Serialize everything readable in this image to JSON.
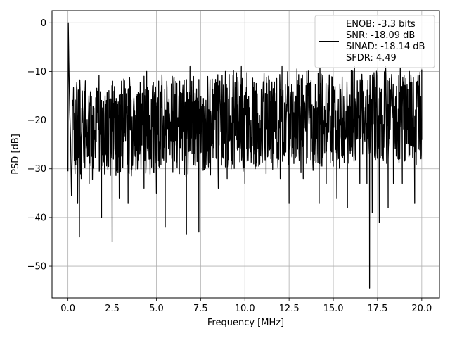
{
  "chart_data": {
    "type": "line",
    "title": "",
    "xlabel": "Frequency [MHz]",
    "ylabel": "PSD [dB]",
    "xlim": [
      -0.9,
      21.0
    ],
    "ylim": [
      -56.5,
      2.5
    ],
    "xticks": [
      0.0,
      2.5,
      5.0,
      7.5,
      10.0,
      12.5,
      15.0,
      17.5,
      20.0
    ],
    "xtick_labels": [
      "0.0",
      "2.5",
      "5.0",
      "7.5",
      "10.0",
      "12.5",
      "15.0",
      "17.5",
      "20.0"
    ],
    "yticks": [
      0,
      -10,
      -20,
      -30,
      -40,
      -50
    ],
    "ytick_labels": [
      "0",
      "−10",
      "−20",
      "−30",
      "−40",
      "−50"
    ],
    "grid": true,
    "line_color": "#000000",
    "legend_position": "top-right",
    "legend_lines": [
      "ENOB: -3.3 bits",
      "SNR: -18.09 dB",
      "SINAD: -18.14 dB",
      "SFDR: 4.49"
    ],
    "series": [
      {
        "points": [
          [
            0.0,
            -30.5
          ],
          [
            0.02,
            0.0
          ],
          [
            0.05,
            -8.0
          ],
          [
            0.1,
            -18.0
          ],
          [
            0.15,
            -24.0
          ],
          [
            0.2,
            -35.5
          ],
          [
            0.3,
            -16.0
          ],
          [
            0.4,
            -31.0
          ],
          [
            0.55,
            -37.0
          ],
          [
            0.65,
            -44.0
          ],
          [
            0.75,
            -32.0
          ],
          [
            0.95,
            -16.0
          ],
          [
            1.2,
            -33.0
          ],
          [
            1.3,
            -14.0
          ],
          [
            1.9,
            -40.0
          ],
          [
            2.1,
            -15.0
          ],
          [
            2.5,
            -45.0
          ],
          [
            2.9,
            -36.0
          ],
          [
            3.3,
            -18.0
          ],
          [
            3.4,
            -37.0
          ],
          [
            3.5,
            -13.0
          ],
          [
            4.3,
            -34.0
          ],
          [
            4.45,
            -10.0
          ],
          [
            5.0,
            -35.0
          ],
          [
            5.5,
            -42.0
          ],
          [
            5.9,
            -11.0
          ],
          [
            6.3,
            -31.0
          ],
          [
            6.7,
            -43.5
          ],
          [
            6.9,
            -9.0
          ],
          [
            7.4,
            -43.0
          ],
          [
            8.5,
            -34.0
          ],
          [
            8.9,
            -10.0
          ],
          [
            9.0,
            -32.0
          ],
          [
            9.8,
            -9.0
          ],
          [
            10.0,
            -33.0
          ],
          [
            10.5,
            -29.0
          ],
          [
            11.2,
            -31.0
          ],
          [
            12.0,
            -32.0
          ],
          [
            12.1,
            -9.0
          ],
          [
            12.5,
            -37.0
          ],
          [
            13.3,
            -32.0
          ],
          [
            13.5,
            -10.0
          ],
          [
            14.2,
            -37.0
          ],
          [
            14.6,
            -33.0
          ],
          [
            15.2,
            -36.0
          ],
          [
            15.8,
            -38.0
          ],
          [
            16.2,
            -9.0
          ],
          [
            16.5,
            -33.0
          ],
          [
            16.9,
            -33.0
          ],
          [
            17.05,
            -54.5
          ],
          [
            17.2,
            -39.0
          ],
          [
            17.6,
            -41.0
          ],
          [
            17.9,
            -10.0
          ],
          [
            18.1,
            -38.0
          ],
          [
            18.4,
            -33.0
          ],
          [
            18.9,
            -33.0
          ],
          [
            19.3,
            -10.0
          ],
          [
            19.6,
            -37.0
          ],
          [
            20.0,
            -24.0
          ]
        ]
      }
    ]
  }
}
